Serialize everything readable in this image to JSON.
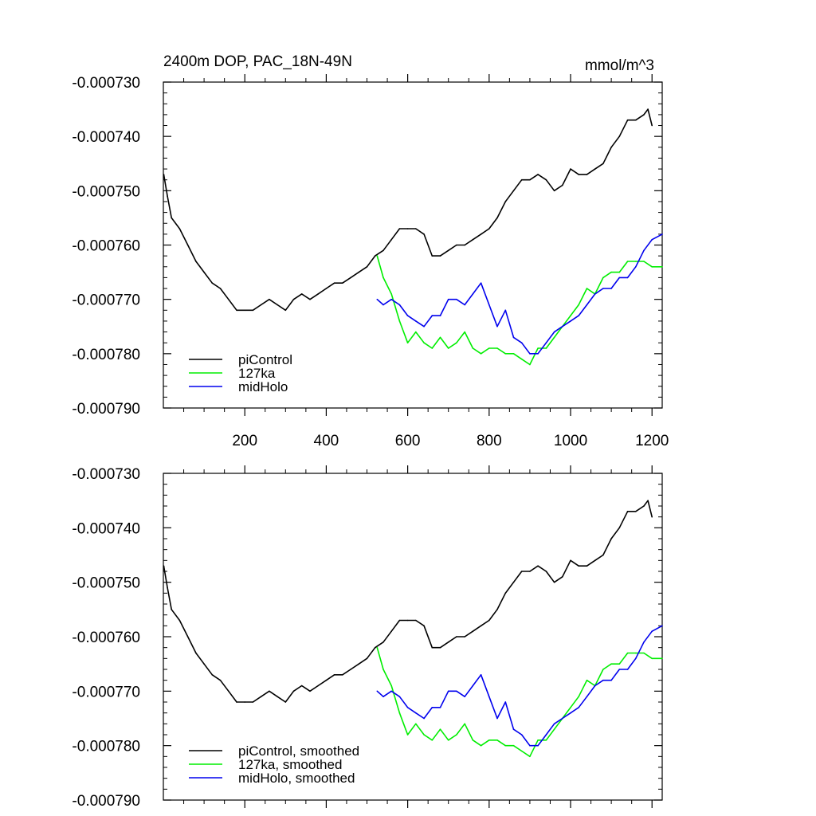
{
  "chart_data": [
    {
      "type": "line",
      "title": "2400m DOP, PAC_18N-49N",
      "units": "mmol/m^3",
      "xlim": [
        0,
        1225
      ],
      "ylim": [
        -0.00079,
        -0.00073
      ],
      "xticks": [
        200,
        400,
        600,
        800,
        1000,
        1200
      ],
      "xtick_labels": [
        "200",
        "400",
        "600",
        "800",
        "1000",
        "1200"
      ],
      "yticks": [
        -0.00073,
        -0.00074,
        -0.00075,
        -0.00076,
        -0.00077,
        -0.00078,
        -0.00079
      ],
      "ytick_labels": [
        "-0.000730",
        "-0.000740",
        "-0.000750",
        "-0.000760",
        "-0.000770",
        "-0.000780",
        "-0.000790"
      ],
      "grid": false,
      "legend": "bottom-left",
      "series": [
        {
          "name": "piControl",
          "color": "#000000",
          "x": [
            1,
            10,
            20,
            40,
            60,
            80,
            100,
            120,
            140,
            160,
            180,
            200,
            220,
            240,
            260,
            280,
            300,
            320,
            340,
            360,
            380,
            400,
            420,
            440,
            460,
            480,
            500,
            520,
            540,
            560,
            580,
            600,
            620,
            640,
            660,
            680,
            700,
            720,
            740,
            760,
            780,
            800,
            820,
            840,
            860,
            880,
            900,
            920,
            940,
            960,
            980,
            1000,
            1020,
            1040,
            1060,
            1080,
            1100,
            1120,
            1140,
            1160,
            1180,
            1190,
            1200
          ],
          "y": [
            -0.000747,
            -0.000751,
            -0.000755,
            -0.000757,
            -0.00076,
            -0.000763,
            -0.000765,
            -0.000767,
            -0.000768,
            -0.00077,
            -0.000772,
            -0.000772,
            -0.000772,
            -0.000771,
            -0.00077,
            -0.000771,
            -0.000772,
            -0.00077,
            -0.000769,
            -0.00077,
            -0.000769,
            -0.000768,
            -0.000767,
            -0.000767,
            -0.000766,
            -0.000765,
            -0.000764,
            -0.000762,
            -0.000761,
            -0.000759,
            -0.000757,
            -0.000757,
            -0.000757,
            -0.000758,
            -0.000762,
            -0.000762,
            -0.000761,
            -0.00076,
            -0.00076,
            -0.000759,
            -0.000758,
            -0.000757,
            -0.000755,
            -0.000752,
            -0.00075,
            -0.000748,
            -0.000748,
            -0.000747,
            -0.000748,
            -0.00075,
            -0.000749,
            -0.000746,
            -0.000747,
            -0.000747,
            -0.000746,
            -0.000745,
            -0.000742,
            -0.00074,
            -0.000737,
            -0.000737,
            -0.000736,
            -0.000735,
            -0.000738
          ]
        },
        {
          "name": "127ka",
          "color": "#00ee00",
          "x": [
            525,
            540,
            560,
            580,
            600,
            620,
            640,
            660,
            680,
            700,
            720,
            740,
            760,
            780,
            800,
            820,
            840,
            860,
            880,
            900,
            920,
            940,
            960,
            980,
            1000,
            1020,
            1040,
            1060,
            1080,
            1100,
            1120,
            1140,
            1160,
            1180,
            1200,
            1225
          ],
          "y": [
            -0.000762,
            -0.000766,
            -0.000769,
            -0.000774,
            -0.000778,
            -0.000776,
            -0.000778,
            -0.000779,
            -0.000777,
            -0.000779,
            -0.000778,
            -0.000776,
            -0.000779,
            -0.00078,
            -0.000779,
            -0.000779,
            -0.00078,
            -0.00078,
            -0.000781,
            -0.000782,
            -0.000779,
            -0.000779,
            -0.000777,
            -0.000775,
            -0.000773,
            -0.000771,
            -0.000768,
            -0.000769,
            -0.000766,
            -0.000765,
            -0.000765,
            -0.000763,
            -0.000763,
            -0.000763,
            -0.000764,
            -0.000764
          ]
        },
        {
          "name": "midHolo",
          "color": "#0000ee",
          "x": [
            525,
            540,
            560,
            580,
            600,
            620,
            640,
            660,
            680,
            700,
            720,
            740,
            760,
            780,
            800,
            820,
            840,
            860,
            880,
            900,
            920,
            940,
            960,
            980,
            1000,
            1020,
            1040,
            1060,
            1080,
            1100,
            1120,
            1140,
            1160,
            1180,
            1200,
            1225
          ],
          "y": [
            -0.00077,
            -0.000771,
            -0.00077,
            -0.000771,
            -0.000773,
            -0.000774,
            -0.000775,
            -0.000773,
            -0.000773,
            -0.00077,
            -0.00077,
            -0.000771,
            -0.000769,
            -0.000767,
            -0.000771,
            -0.000775,
            -0.000772,
            -0.000777,
            -0.000778,
            -0.00078,
            -0.00078,
            -0.000778,
            -0.000776,
            -0.000775,
            -0.000774,
            -0.000773,
            -0.000771,
            -0.000769,
            -0.000768,
            -0.000768,
            -0.000766,
            -0.000766,
            -0.000764,
            -0.000761,
            -0.000759,
            -0.000758
          ]
        }
      ]
    },
    {
      "type": "line",
      "xlim": [
        0,
        1225
      ],
      "ylim": [
        -0.00079,
        -0.00073
      ],
      "xticks": [
        200,
        400,
        600,
        800,
        1000,
        1200
      ],
      "yticks": [
        -0.00073,
        -0.00074,
        -0.00075,
        -0.00076,
        -0.00077,
        -0.00078,
        -0.00079
      ],
      "ytick_labels": [
        "-0.000730",
        "-0.000740",
        "-0.000750",
        "-0.000760",
        "-0.000770",
        "-0.000780",
        "-0.000790"
      ],
      "grid": false,
      "legend": "bottom-left",
      "series": [
        {
          "name": "piControl, smoothed",
          "color": "#000000",
          "x": [
            1,
            10,
            20,
            40,
            60,
            80,
            100,
            120,
            140,
            160,
            180,
            200,
            220,
            240,
            260,
            280,
            300,
            320,
            340,
            360,
            380,
            400,
            420,
            440,
            460,
            480,
            500,
            520,
            540,
            560,
            580,
            600,
            620,
            640,
            660,
            680,
            700,
            720,
            740,
            760,
            780,
            800,
            820,
            840,
            860,
            880,
            900,
            920,
            940,
            960,
            980,
            1000,
            1020,
            1040,
            1060,
            1080,
            1100,
            1120,
            1140,
            1160,
            1180,
            1190,
            1200
          ],
          "y": [
            -0.000747,
            -0.000751,
            -0.000755,
            -0.000757,
            -0.00076,
            -0.000763,
            -0.000765,
            -0.000767,
            -0.000768,
            -0.00077,
            -0.000772,
            -0.000772,
            -0.000772,
            -0.000771,
            -0.00077,
            -0.000771,
            -0.000772,
            -0.00077,
            -0.000769,
            -0.00077,
            -0.000769,
            -0.000768,
            -0.000767,
            -0.000767,
            -0.000766,
            -0.000765,
            -0.000764,
            -0.000762,
            -0.000761,
            -0.000759,
            -0.000757,
            -0.000757,
            -0.000757,
            -0.000758,
            -0.000762,
            -0.000762,
            -0.000761,
            -0.00076,
            -0.00076,
            -0.000759,
            -0.000758,
            -0.000757,
            -0.000755,
            -0.000752,
            -0.00075,
            -0.000748,
            -0.000748,
            -0.000747,
            -0.000748,
            -0.00075,
            -0.000749,
            -0.000746,
            -0.000747,
            -0.000747,
            -0.000746,
            -0.000745,
            -0.000742,
            -0.00074,
            -0.000737,
            -0.000737,
            -0.000736,
            -0.000735,
            -0.000738
          ]
        },
        {
          "name": "127ka, smoothed",
          "color": "#00ee00",
          "x": [
            525,
            540,
            560,
            580,
            600,
            620,
            640,
            660,
            680,
            700,
            720,
            740,
            760,
            780,
            800,
            820,
            840,
            860,
            880,
            900,
            920,
            940,
            960,
            980,
            1000,
            1020,
            1040,
            1060,
            1080,
            1100,
            1120,
            1140,
            1160,
            1180,
            1200,
            1225
          ],
          "y": [
            -0.000762,
            -0.000766,
            -0.000769,
            -0.000774,
            -0.000778,
            -0.000776,
            -0.000778,
            -0.000779,
            -0.000777,
            -0.000779,
            -0.000778,
            -0.000776,
            -0.000779,
            -0.00078,
            -0.000779,
            -0.000779,
            -0.00078,
            -0.00078,
            -0.000781,
            -0.000782,
            -0.000779,
            -0.000779,
            -0.000777,
            -0.000775,
            -0.000773,
            -0.000771,
            -0.000768,
            -0.000769,
            -0.000766,
            -0.000765,
            -0.000765,
            -0.000763,
            -0.000763,
            -0.000763,
            -0.000764,
            -0.000764
          ]
        },
        {
          "name": "midHolo, smoothed",
          "color": "#0000ee",
          "x": [
            525,
            540,
            560,
            580,
            600,
            620,
            640,
            660,
            680,
            700,
            720,
            740,
            760,
            780,
            800,
            820,
            840,
            860,
            880,
            900,
            920,
            940,
            960,
            980,
            1000,
            1020,
            1040,
            1060,
            1080,
            1100,
            1120,
            1140,
            1160,
            1180,
            1200,
            1225
          ],
          "y": [
            -0.00077,
            -0.000771,
            -0.00077,
            -0.000771,
            -0.000773,
            -0.000774,
            -0.000775,
            -0.000773,
            -0.000773,
            -0.00077,
            -0.00077,
            -0.000771,
            -0.000769,
            -0.000767,
            -0.000771,
            -0.000775,
            -0.000772,
            -0.000777,
            -0.000778,
            -0.00078,
            -0.00078,
            -0.000778,
            -0.000776,
            -0.000775,
            -0.000774,
            -0.000773,
            -0.000771,
            -0.000769,
            -0.000768,
            -0.000768,
            -0.000766,
            -0.000766,
            -0.000764,
            -0.000761,
            -0.000759,
            -0.000758
          ]
        }
      ]
    }
  ]
}
